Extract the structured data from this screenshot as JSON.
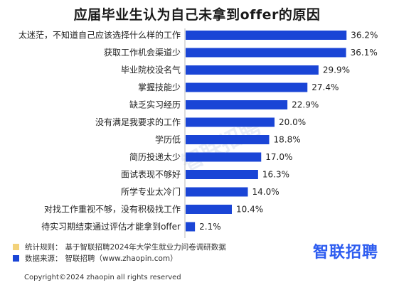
{
  "chart_data": {
    "type": "bar",
    "orientation": "horizontal",
    "title": "应届毕业生认为自己未拿到offer的原因",
    "categories": [
      "太迷茫，不知道自己应该选择什么样的工作",
      "获取工作机会渠道少",
      "毕业院校没名气",
      "掌握技能少",
      "缺乏实习经历",
      "没有满足我要求的工作",
      "学历低",
      "简历投递太少",
      "面试表现不够好",
      "所学专业太冷门",
      "对找工作重视不够，没有积极找工作",
      "待实习期结束通过评估才能拿到offer"
    ],
    "values": [
      36.2,
      36.1,
      29.9,
      27.4,
      22.9,
      20.0,
      18.8,
      17.0,
      16.3,
      14.0,
      10.4,
      2.1
    ],
    "value_labels": [
      "36.2%",
      "36.1%",
      "29.9%",
      "27.4%",
      "22.9%",
      "20.0%",
      "18.8%",
      "17.0%",
      "16.3%",
      "14.0%",
      "10.4%",
      "2.1%"
    ],
    "unit": "%",
    "bar_color": "#1a45d6",
    "xlim": [
      0,
      40
    ],
    "grid": false
  },
  "legend": {
    "stats_key": "统计规则：",
    "stats_text": "基于智联招聘2024年大学生就业力问卷调研数据",
    "stats_color": "#f3d27a",
    "source_key": "数据来源：",
    "source_text": "智联招聘（www.zhaopin.com）",
    "source_color": "#1a45d6"
  },
  "brand": "智联招聘",
  "watermark": "智联招聘",
  "copyright": "Copyright©2024 zhaopin all rights reserved"
}
